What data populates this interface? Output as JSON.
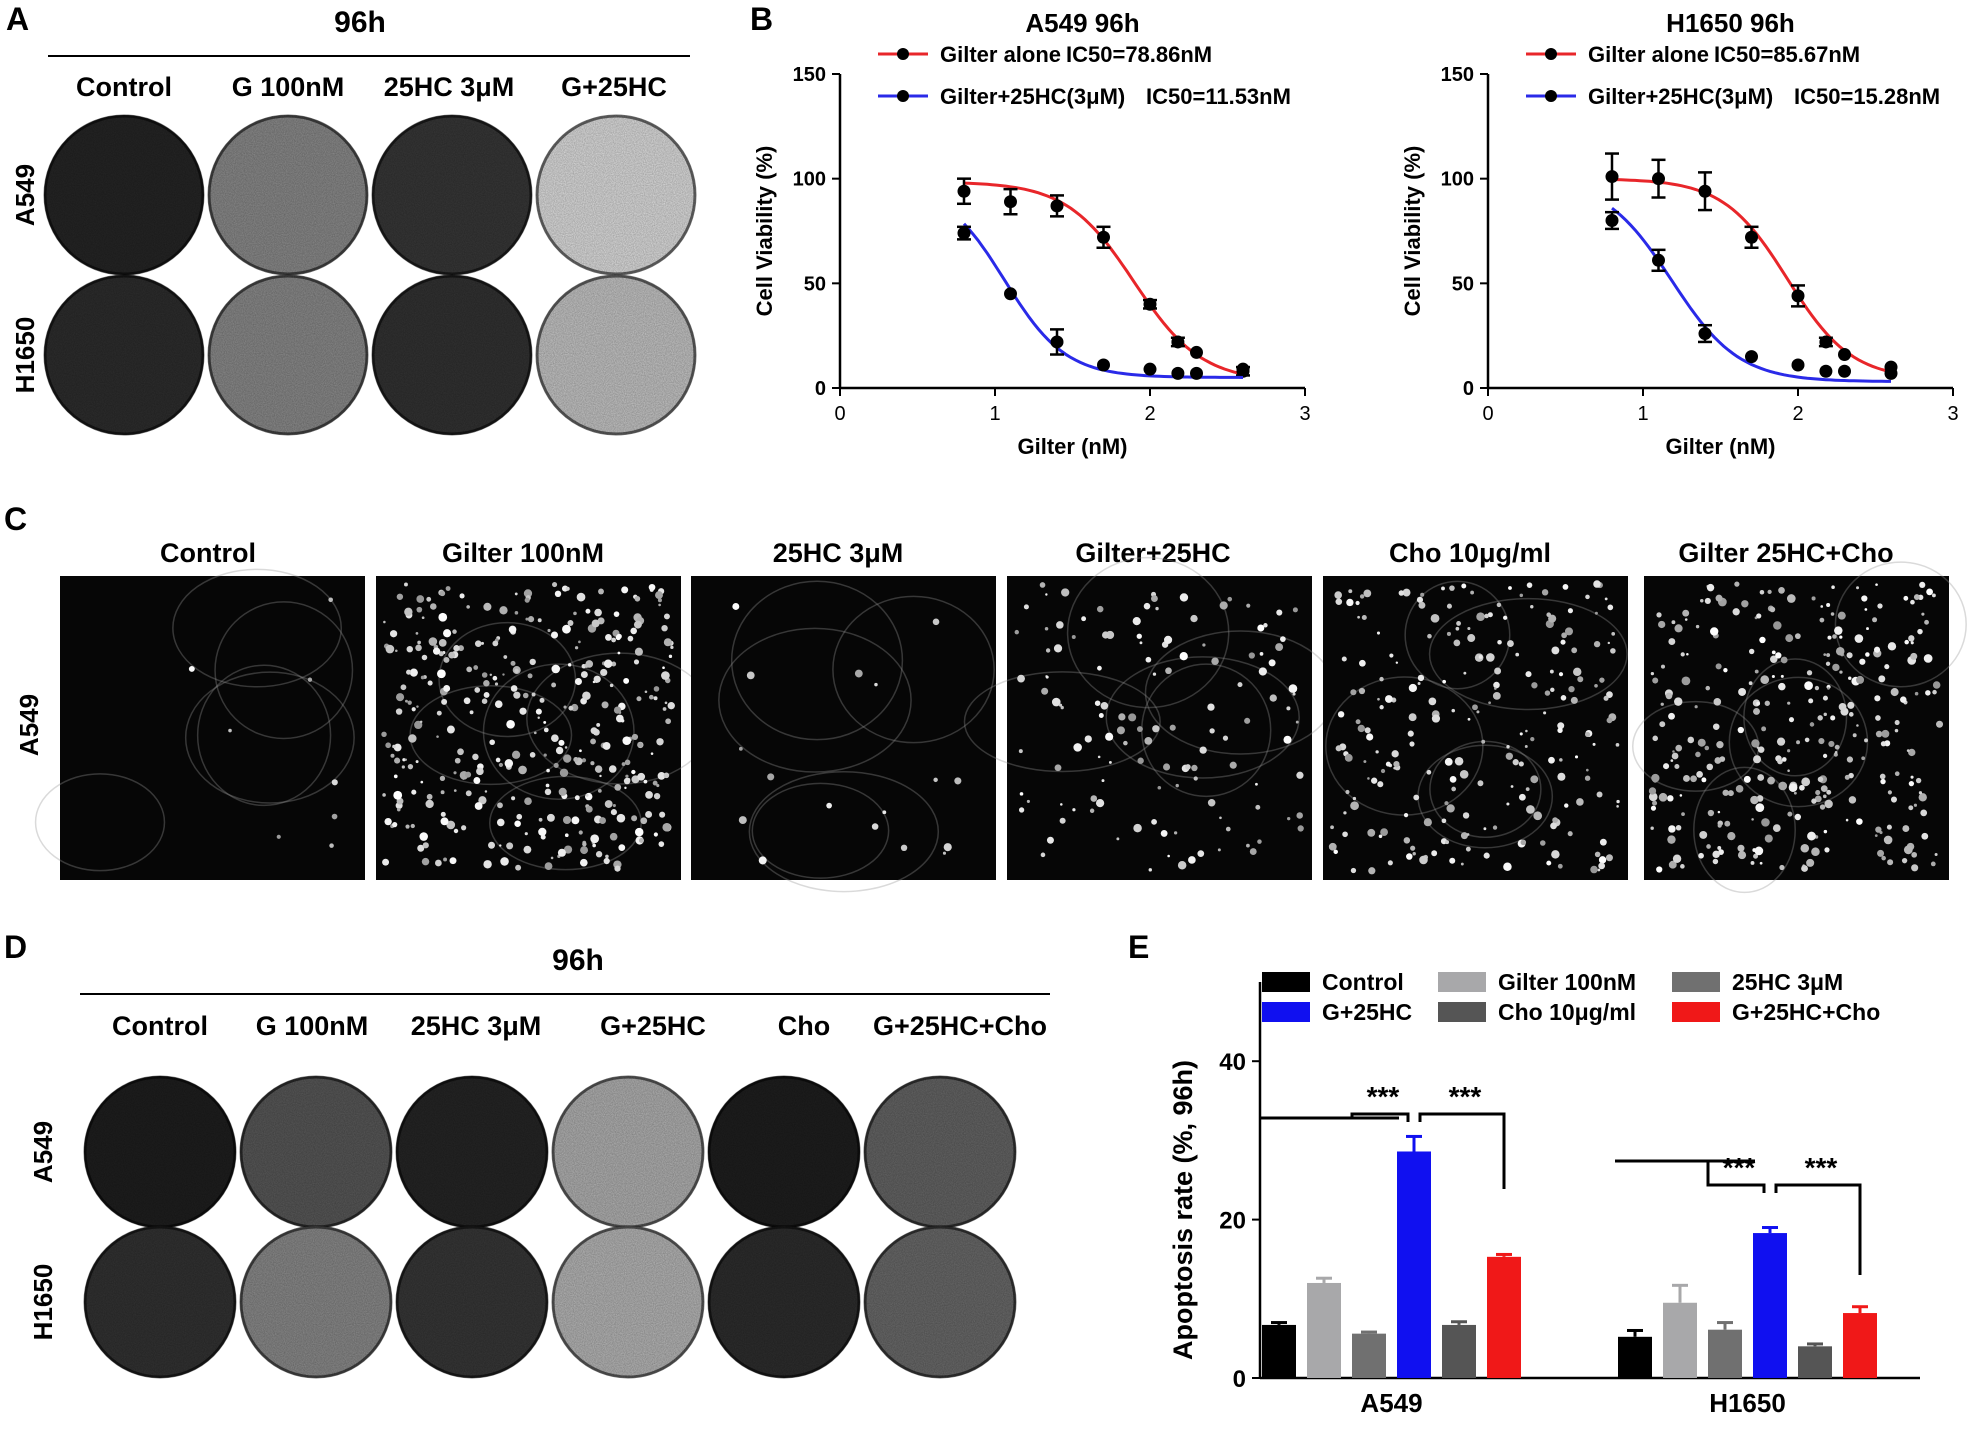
{
  "panels": {
    "A": {
      "letter": "A",
      "time": "96h",
      "columns": [
        "Control",
        "G 100nM",
        "25HC 3μM",
        "G+25HC"
      ],
      "rows": [
        "A549",
        "H1650"
      ],
      "well_intensity": [
        [
          0.15,
          0.55,
          0.22,
          0.88
        ],
        [
          0.18,
          0.55,
          0.2,
          0.78
        ]
      ]
    },
    "C": {
      "letter": "C",
      "columns": [
        "Control",
        "Gilter 100nM",
        "25HC 3μM",
        "Gilter+25HC",
        "Cho 10μg/ml",
        "Gilter 25HC+Cho"
      ],
      "row": "A549",
      "droplet_density": [
        0.02,
        0.9,
        0.04,
        0.3,
        0.55,
        0.75
      ]
    },
    "D": {
      "letter": "D",
      "time": "96h",
      "columns": [
        "Control",
        "G 100nM",
        "25HC 3μM",
        "G+25HC",
        "Cho",
        "G+25HC+Cho"
      ],
      "rows": [
        "A549",
        "H1650"
      ],
      "well_intensity": [
        [
          0.12,
          0.35,
          0.15,
          0.7,
          0.12,
          0.4
        ],
        [
          0.2,
          0.55,
          0.22,
          0.72,
          0.18,
          0.42
        ]
      ]
    }
  },
  "colors": {
    "gilter_alone": "#e8262a",
    "gilter_25hc": "#2a2ae8",
    "control": "#000000",
    "gilter_100nM": "#a8a8aa",
    "g_25hc": "#1010f0",
    "25hc_3uM": "#707070",
    "cho": "#555555",
    "g_25hc_cho": "#f01818"
  },
  "chart_data": [
    {
      "panel": "B",
      "type": "line",
      "title": "A549 96h",
      "xlabel": "Gilter (nM)",
      "ylabel": "Cell Viability (%)",
      "xlim": [
        0,
        3
      ],
      "ylim": [
        0,
        150
      ],
      "xticks": [
        0,
        1,
        2,
        3
      ],
      "yticks": [
        0,
        50,
        100,
        150
      ],
      "legend_position": "top",
      "series": [
        {
          "name": "Gilter alone",
          "ic50_label": "IC50=78.86nM",
          "ic50": 78.86,
          "color": "#e8262a",
          "x": [
            0.8,
            1.1,
            1.4,
            1.7,
            2.0,
            2.18,
            2.3,
            2.6
          ],
          "y": [
            94,
            89,
            87,
            72,
            40,
            22,
            17,
            8
          ],
          "err": [
            6,
            6,
            5,
            5,
            2,
            2,
            1,
            2
          ],
          "fit_top": 98.5,
          "fit_bottom": 3,
          "fit_hill": 2.0
        },
        {
          "name": "Gilter+25HC(3μM)",
          "ic50_label": "IC50=11.53nM",
          "ic50": 11.53,
          "color": "#2a2ae8",
          "x": [
            0.8,
            1.1,
            1.4,
            1.7,
            2.0,
            2.18,
            2.3,
            2.6
          ],
          "y": [
            74,
            45,
            22,
            11,
            9,
            7,
            7,
            9
          ],
          "err": [
            3,
            1,
            6,
            1,
            1,
            1,
            1,
            1
          ],
          "fit_top": 98,
          "fit_bottom": 5,
          "fit_hill": 2.2
        }
      ]
    },
    {
      "panel": "B",
      "type": "line",
      "title": "H1650 96h",
      "xlabel": "Gilter (nM)",
      "ylabel": "Cell Viability (%)",
      "xlim": [
        0,
        3
      ],
      "ylim": [
        0,
        150
      ],
      "xticks": [
        0,
        1,
        2,
        3
      ],
      "yticks": [
        0,
        50,
        100,
        150
      ],
      "legend_position": "top",
      "series": [
        {
          "name": "Gilter alone",
          "ic50_label": "IC50=85.67nM",
          "ic50": 85.67,
          "color": "#e8262a",
          "x": [
            0.8,
            1.1,
            1.4,
            1.7,
            2.0,
            2.18,
            2.3,
            2.6
          ],
          "y": [
            101,
            100,
            94,
            72,
            44,
            22,
            16,
            10
          ],
          "err": [
            11,
            9,
            9,
            5,
            5,
            2,
            1,
            1
          ],
          "fit_top": 100,
          "fit_bottom": 4,
          "fit_hill": 2.1
        },
        {
          "name": "Gilter+25HC(3μM)",
          "ic50_label": "IC50=15.28nM",
          "ic50": 15.28,
          "color": "#2a2ae8",
          "x": [
            0.8,
            1.1,
            1.4,
            1.7,
            2.0,
            2.18,
            2.3,
            2.6
          ],
          "y": [
            80,
            61,
            26,
            15,
            11,
            8,
            8,
            7
          ],
          "err": [
            4,
            5,
            4,
            1,
            1,
            1,
            1,
            1
          ],
          "fit_top": 100,
          "fit_bottom": 3,
          "fit_hill": 2.0
        }
      ]
    },
    {
      "panel": "E",
      "type": "bar",
      "ylabel": "Apoptosis rate (%, 96h)",
      "ylim": [
        0,
        50
      ],
      "yticks": [
        0,
        20,
        40
      ],
      "categories": [
        "A549",
        "H1650"
      ],
      "legend_position": "top",
      "series": [
        {
          "name": "Control",
          "color": "#000000",
          "values": [
            6.7,
            5.2
          ],
          "err": [
            0.3,
            0.8
          ]
        },
        {
          "name": "Gilter 100nM",
          "color": "#a8a8aa",
          "values": [
            12.0,
            9.5
          ],
          "err": [
            0.6,
            2.2
          ]
        },
        {
          "name": "25HC 3μM",
          "color": "#707070",
          "values": [
            5.6,
            6.1
          ],
          "err": [
            0.2,
            0.9
          ]
        },
        {
          "name": "G+25HC",
          "color": "#1010f0",
          "values": [
            28.6,
            18.3
          ],
          "err": [
            1.9,
            0.7
          ]
        },
        {
          "name": "Cho 10μg/ml",
          "color": "#555555",
          "values": [
            6.7,
            4.0
          ],
          "err": [
            0.4,
            0.3
          ]
        },
        {
          "name": "G+25HC+Cho",
          "color": "#f01818",
          "values": [
            15.3,
            8.2
          ],
          "err": [
            0.3,
            0.8
          ]
        }
      ],
      "significance": [
        "***",
        "***",
        "***",
        "***"
      ]
    }
  ]
}
